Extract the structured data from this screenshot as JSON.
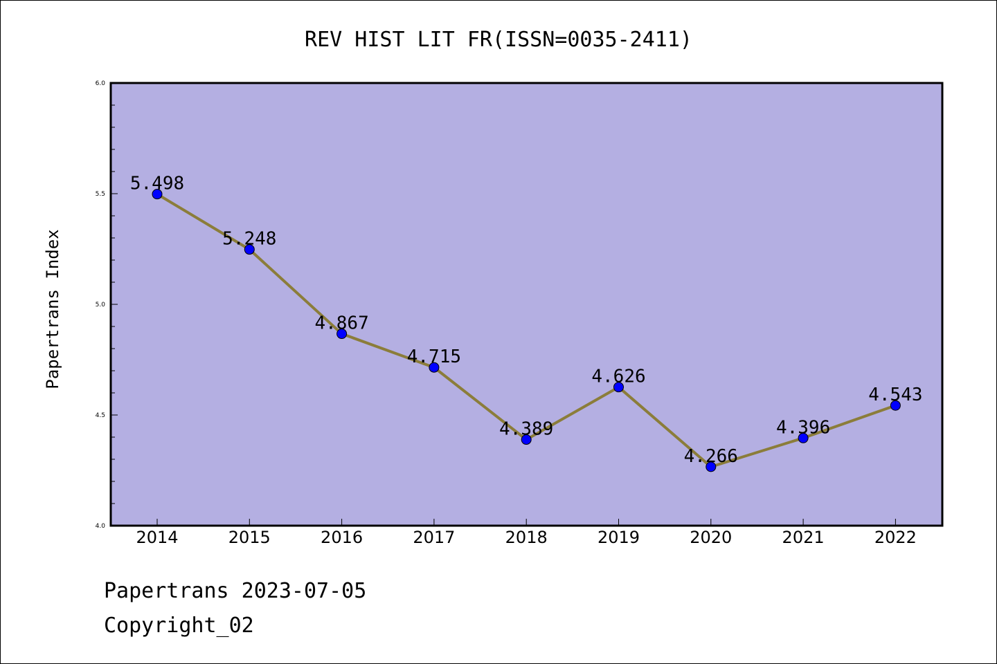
{
  "chart_data": {
    "type": "line",
    "title": "REV HIST LIT FR(ISSN=0035-2411)",
    "xlabel": "",
    "ylabel": "Papertrans Index",
    "categories": [
      "2014",
      "2015",
      "2016",
      "2017",
      "2018",
      "2019",
      "2020",
      "2021",
      "2022"
    ],
    "series": [
      {
        "values": [
          5.498,
          5.248,
          4.867,
          4.715,
          4.389,
          4.626,
          4.266,
          4.396,
          4.543
        ],
        "labels": [
          "5.498",
          "5.248",
          "4.867",
          "4.715",
          "4.389",
          "4.626",
          "4.266",
          "4.396",
          "4.543"
        ]
      }
    ],
    "ylim": [
      4.0,
      6.0
    ],
    "yticks": [
      "4.0",
      "4.5",
      "5.0",
      "5.5",
      "6.0"
    ],
    "grid": false,
    "colors": {
      "plot_background": "#b4afe2",
      "line": "#8b7d3a",
      "marker": "#0000ff"
    }
  },
  "footer": {
    "line1": "Papertrans 2023-07-05",
    "line2": "Copyright_02"
  }
}
